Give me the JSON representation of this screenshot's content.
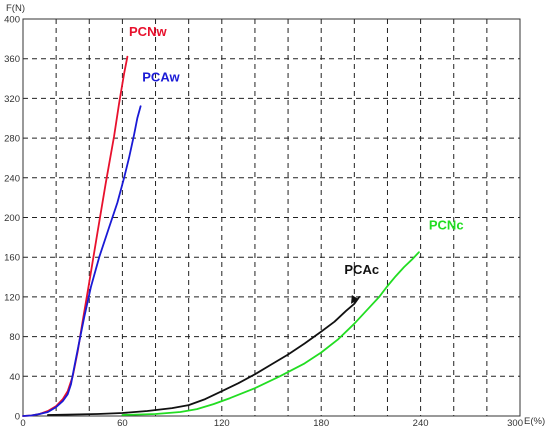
{
  "chart_data": {
    "type": "line",
    "title": "",
    "xlabel": "E(%)",
    "ylabel": "F(N)",
    "xlim": [
      0,
      300
    ],
    "ylim": [
      0,
      400
    ],
    "x_ticks": [
      0,
      60,
      120,
      180,
      240,
      300
    ],
    "y_ticks": [
      0,
      40,
      80,
      120,
      160,
      200,
      240,
      280,
      320,
      360,
      400
    ],
    "x_grid_step": 20,
    "y_grid_step": 40,
    "grid": true,
    "legend": "none",
    "series": [
      {
        "name": "PCNw",
        "color": "#e8112d",
        "points": [
          [
            0,
            0
          ],
          [
            5,
            0.5
          ],
          [
            10,
            2
          ],
          [
            15,
            5
          ],
          [
            20,
            10
          ],
          [
            24,
            17
          ],
          [
            27,
            25
          ],
          [
            30,
            40
          ],
          [
            33,
            65
          ],
          [
            36,
            95
          ],
          [
            40,
            135
          ],
          [
            45,
            185
          ],
          [
            50,
            235
          ],
          [
            55,
            282
          ],
          [
            58,
            315
          ],
          [
            61,
            345
          ],
          [
            63,
            362
          ]
        ]
      },
      {
        "name": "PCAw",
        "color": "#1a1ad6",
        "points": [
          [
            0,
            0
          ],
          [
            5,
            0.5
          ],
          [
            10,
            2
          ],
          [
            15,
            4
          ],
          [
            20,
            9
          ],
          [
            24,
            15
          ],
          [
            27,
            22
          ],
          [
            29,
            32
          ],
          [
            31,
            50
          ],
          [
            34,
            75
          ],
          [
            37,
            100
          ],
          [
            41,
            130
          ],
          [
            46,
            160
          ],
          [
            52,
            190
          ],
          [
            57,
            215
          ],
          [
            61,
            240
          ],
          [
            64,
            260
          ],
          [
            67,
            283
          ],
          [
            69,
            300
          ],
          [
            71,
            312
          ]
        ]
      },
      {
        "name": "PCAc",
        "color": "#111111",
        "points": [
          [
            15,
            1
          ],
          [
            30,
            1.5
          ],
          [
            45,
            2
          ],
          [
            60,
            3
          ],
          [
            75,
            5
          ],
          [
            90,
            8
          ],
          [
            100,
            11
          ],
          [
            110,
            17
          ],
          [
            120,
            25
          ],
          [
            130,
            33
          ],
          [
            140,
            42
          ],
          [
            150,
            52
          ],
          [
            160,
            62
          ],
          [
            170,
            73
          ],
          [
            180,
            85
          ],
          [
            188,
            95
          ],
          [
            195,
            106
          ],
          [
            200,
            113
          ],
          [
            203,
            120
          ]
        ]
      },
      {
        "name": "PCNc",
        "color": "#22dd22",
        "points": [
          [
            60,
            1
          ],
          [
            80,
            2
          ],
          [
            95,
            4
          ],
          [
            105,
            7
          ],
          [
            115,
            12
          ],
          [
            125,
            18
          ],
          [
            140,
            28
          ],
          [
            155,
            40
          ],
          [
            170,
            53
          ],
          [
            180,
            64
          ],
          [
            190,
            77
          ],
          [
            200,
            93
          ],
          [
            210,
            111
          ],
          [
            215,
            120
          ],
          [
            220,
            131
          ],
          [
            225,
            141
          ],
          [
            230,
            150
          ],
          [
            235,
            158
          ],
          [
            239,
            165
          ]
        ]
      }
    ],
    "annotations": [
      {
        "text": "PCNw",
        "x": 64,
        "y": 383,
        "color": "#e8112d"
      },
      {
        "text": "PCAw",
        "x": 72,
        "y": 337,
        "color": "#1a1ad6"
      },
      {
        "text": "PCAc",
        "x": 194,
        "y": 143,
        "color": "#111111"
      },
      {
        "text": "PCNc",
        "x": 245,
        "y": 188,
        "color": "#22dd22"
      }
    ],
    "arrow": {
      "from": [
        201,
        121
      ],
      "to": [
        198,
        113
      ],
      "color": "#111111"
    }
  }
}
